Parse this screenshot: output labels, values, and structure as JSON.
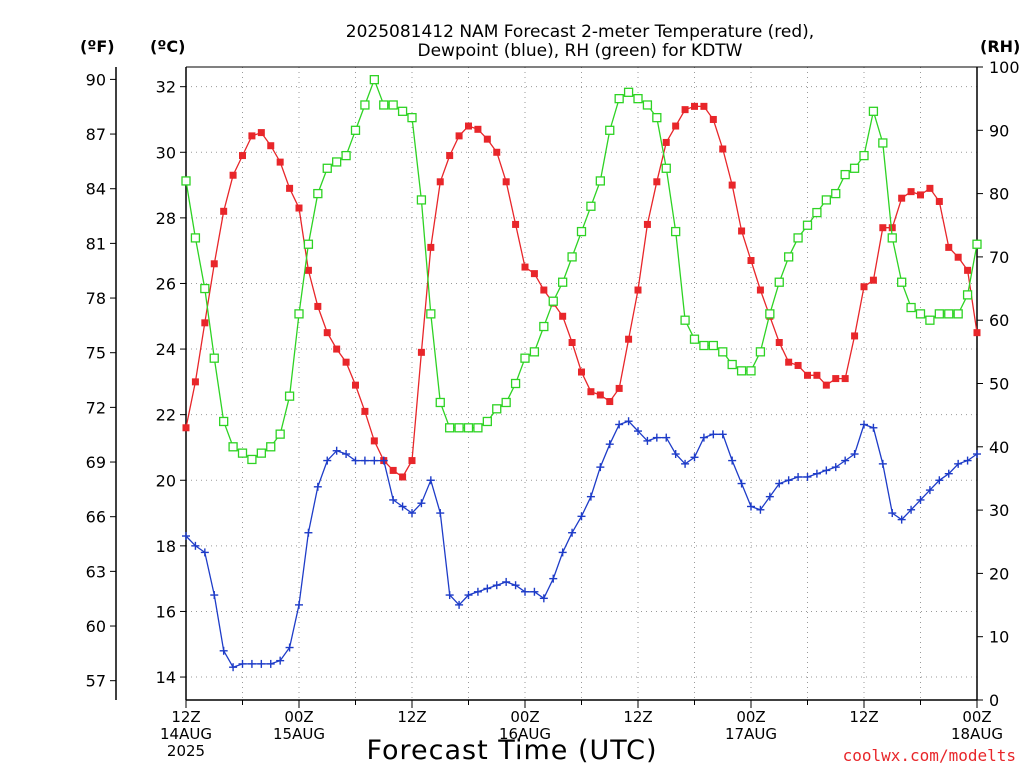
{
  "chart_data": {
    "type": "line",
    "title_lines": [
      "2025081412 NAM Forecast 2-meter Temperature (red),",
      "Dewpoint (blue), RH (green) for KDTW"
    ],
    "xlabel": "Forecast Time (UTC)",
    "credit": "coolwx.com/modelts",
    "axes": {
      "left_f": {
        "unit": "(ºF)",
        "ticks": [
          57,
          60,
          63,
          66,
          69,
          72,
          75,
          78,
          81,
          84,
          87,
          90
        ]
      },
      "left_c": {
        "unit": "(ºC)",
        "range": [
          13.3,
          32.6
        ],
        "ticks": [
          14,
          16,
          18,
          20,
          22,
          24,
          26,
          28,
          30,
          32
        ]
      },
      "right_rh": {
        "unit": "(RH)",
        "range": [
          0,
          100
        ],
        "ticks": [
          0,
          10,
          20,
          30,
          40,
          50,
          60,
          70,
          80,
          90,
          100
        ]
      }
    },
    "x_range_hours": [
      0,
      84
    ],
    "x_ticks": [
      {
        "hour": 0,
        "lines": [
          "12Z",
          "14AUG",
          "2025"
        ]
      },
      {
        "hour": 12,
        "lines": [
          "00Z",
          "15AUG"
        ]
      },
      {
        "hour": 24,
        "lines": [
          "12Z"
        ]
      },
      {
        "hour": 36,
        "lines": [
          "00Z",
          "16AUG"
        ]
      },
      {
        "hour": 48,
        "lines": [
          "12Z"
        ]
      },
      {
        "hour": 60,
        "lines": [
          "00Z",
          "17AUG"
        ]
      },
      {
        "hour": 72,
        "lines": [
          "12Z"
        ]
      },
      {
        "hour": 84,
        "lines": [
          "00Z",
          "18AUG"
        ]
      }
    ],
    "grid": true,
    "series": [
      {
        "name": "Temperature",
        "color": "#e8262a",
        "marker": "filled-square",
        "axis": "left_c",
        "x": [
          0,
          1,
          2,
          3,
          4,
          5,
          6,
          7,
          8,
          9,
          10,
          11,
          12,
          13,
          14,
          15,
          16,
          17,
          18,
          19,
          20,
          21,
          22,
          23,
          24,
          25,
          26,
          27,
          28,
          29,
          30,
          31,
          32,
          33,
          34,
          35,
          36,
          37,
          38,
          39,
          40,
          41,
          42,
          43,
          44,
          45,
          46,
          47,
          48,
          49,
          50,
          51,
          52,
          53,
          54,
          55,
          56,
          57,
          58,
          59,
          60,
          61,
          62,
          63,
          64,
          65,
          66,
          67,
          68,
          69,
          70,
          71,
          72,
          73,
          74,
          75,
          76,
          77,
          78,
          79,
          80,
          81,
          82,
          83,
          84
        ],
        "values": [
          21.6,
          23.0,
          24.8,
          26.6,
          28.2,
          29.3,
          29.9,
          30.5,
          30.6,
          30.2,
          29.7,
          28.9,
          28.3,
          26.4,
          25.3,
          24.5,
          24.0,
          23.6,
          22.9,
          22.1,
          21.2,
          20.6,
          20.3,
          20.1,
          20.6,
          23.9,
          27.1,
          29.1,
          29.9,
          30.5,
          30.8,
          30.7,
          30.4,
          30.0,
          29.1,
          27.8,
          26.5,
          26.3,
          25.8,
          25.4,
          25.0,
          24.2,
          23.3,
          22.7,
          22.6,
          22.4,
          22.8,
          24.3,
          25.8,
          27.8,
          29.1,
          30.3,
          30.8,
          31.3,
          31.4,
          31.4,
          31.0,
          30.1,
          29.0,
          27.6,
          26.7,
          25.8,
          25.0,
          24.2,
          23.6,
          23.5,
          23.2,
          23.2,
          22.9,
          23.1,
          23.1,
          24.4,
          25.9,
          26.1,
          27.7,
          27.7,
          28.6,
          28.8,
          28.7,
          28.9,
          28.5,
          27.1,
          26.8,
          26.4,
          24.5
        ],
        "f_offset_note": ""
      },
      {
        "name": "Dewpoint",
        "color": "#1e3cc8",
        "marker": "plus",
        "axis": "left_c",
        "x": [
          0,
          1,
          2,
          3,
          4,
          5,
          6,
          7,
          8,
          9,
          10,
          11,
          12,
          13,
          14,
          15,
          16,
          17,
          18,
          19,
          20,
          21,
          22,
          23,
          24,
          25,
          26,
          27,
          28,
          29,
          30,
          31,
          32,
          33,
          34,
          35,
          36,
          37,
          38,
          39,
          40,
          41,
          42,
          43,
          44,
          45,
          46,
          47,
          48,
          49,
          50,
          51,
          52,
          53,
          54,
          55,
          56,
          57,
          58,
          59,
          60,
          61,
          62,
          63,
          64,
          65,
          66,
          67,
          68,
          69,
          70,
          71,
          72,
          73,
          74,
          75,
          76,
          77,
          78,
          79,
          80,
          81,
          82,
          83,
          84
        ],
        "values": [
          18.3,
          18.0,
          17.8,
          16.5,
          14.8,
          14.3,
          14.4,
          14.4,
          14.4,
          14.4,
          14.5,
          14.9,
          16.2,
          18.4,
          19.8,
          20.6,
          20.9,
          20.8,
          20.6,
          20.6,
          20.6,
          20.6,
          19.4,
          19.2,
          19.0,
          19.3,
          20.0,
          19.0,
          16.5,
          16.2,
          16.5,
          16.6,
          16.7,
          16.8,
          16.9,
          16.8,
          16.6,
          16.6,
          16.4,
          17.0,
          17.8,
          18.4,
          18.9,
          19.5,
          20.4,
          21.1,
          21.7,
          21.8,
          21.5,
          21.2,
          21.3,
          21.3,
          20.8,
          20.5,
          20.7,
          21.3,
          21.4,
          21.4,
          20.6,
          19.9,
          19.2,
          19.1,
          19.5,
          19.9,
          20.0,
          20.1,
          20.1,
          20.2,
          20.3,
          20.4,
          20.6,
          20.8,
          21.7,
          21.6,
          20.5,
          19.0,
          18.8,
          19.1,
          19.4,
          19.7,
          20.0,
          20.2,
          20.5,
          20.6,
          20.8
        ],
        "comment": ""
      },
      {
        "name": "RH",
        "color": "#2ed324",
        "marker": "open-square",
        "axis": "right_rh",
        "x": [
          0,
          1,
          2,
          3,
          4,
          5,
          6,
          7,
          8,
          9,
          10,
          11,
          12,
          13,
          14,
          15,
          16,
          17,
          18,
          19,
          20,
          21,
          22,
          23,
          24,
          25,
          26,
          27,
          28,
          29,
          30,
          31,
          32,
          33,
          34,
          35,
          36,
          37,
          38,
          39,
          40,
          41,
          42,
          43,
          44,
          45,
          46,
          47,
          48,
          49,
          50,
          51,
          52,
          53,
          54,
          55,
          56,
          57,
          58,
          59,
          60,
          61,
          62,
          63,
          64,
          65,
          66,
          67,
          68,
          69,
          70,
          71,
          72,
          73,
          74,
          75,
          76,
          77,
          78,
          79,
          80,
          81,
          82,
          83,
          84
        ],
        "values": [
          82,
          73,
          65,
          54,
          44,
          40,
          39,
          38,
          39,
          40,
          42,
          48,
          61,
          72,
          80,
          84,
          85,
          86,
          90,
          94,
          98,
          94,
          94,
          93,
          92,
          79,
          61,
          47,
          43,
          43,
          43,
          43,
          44,
          46,
          47,
          50,
          54,
          55,
          59,
          63,
          66,
          70,
          74,
          78,
          82,
          90,
          95,
          96,
          95,
          94,
          92,
          84,
          74,
          60,
          57,
          56,
          56,
          55,
          53,
          52,
          52,
          55,
          61,
          66,
          70,
          73,
          75,
          77,
          79,
          80,
          83,
          84,
          86,
          93,
          88,
          73,
          66,
          62,
          61,
          60,
          61,
          61,
          61,
          64,
          72
        ]
      }
    ]
  }
}
